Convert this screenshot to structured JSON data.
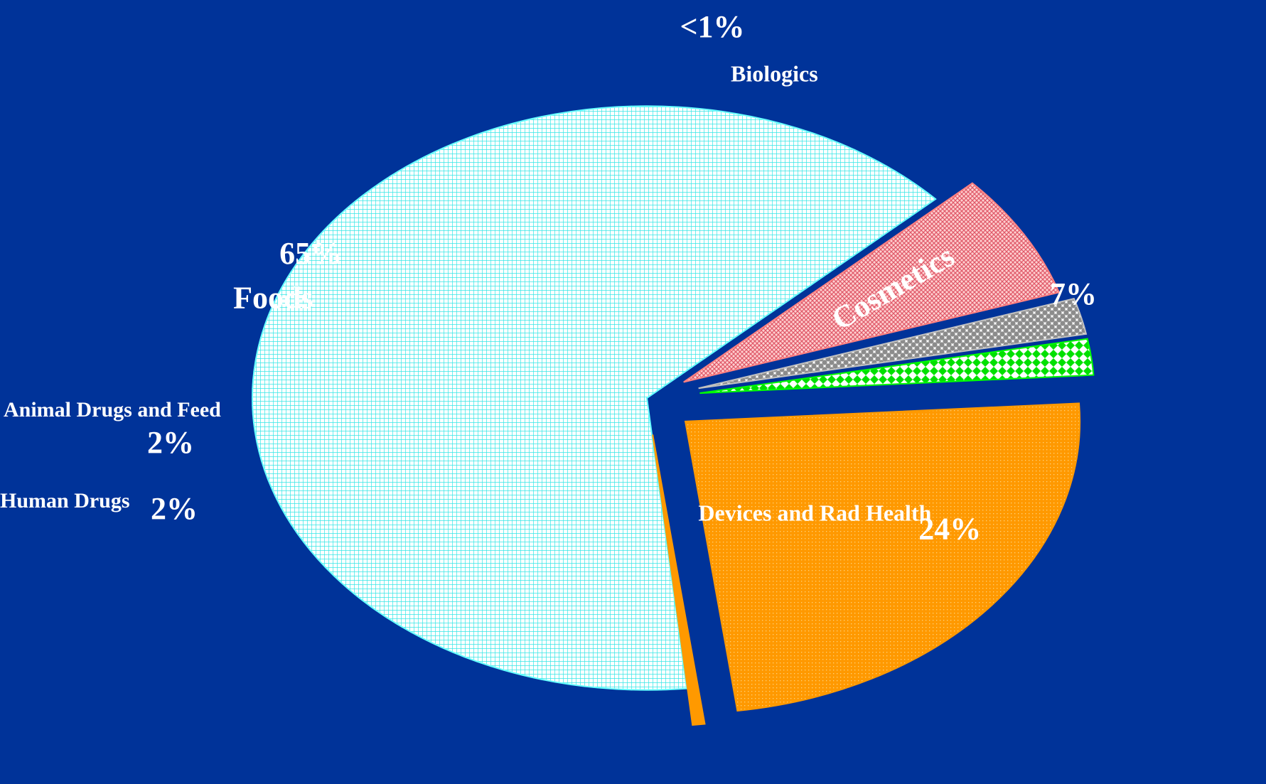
{
  "chart_data": {
    "type": "pie",
    "title": "",
    "unit": "%",
    "slices": [
      {
        "name": "Foods",
        "value": 65,
        "label": "65%",
        "color": "#66FFFF",
        "pattern": "grid"
      },
      {
        "name": "Cosmetics",
        "value": 7,
        "label": "7%",
        "color": "#FF8080",
        "pattern": "crosshatch"
      },
      {
        "name": "Human Drugs",
        "value": 2,
        "label": "2%",
        "color": "#C0C0C0",
        "pattern": "dots"
      },
      {
        "name": "Animal Drugs and Feed",
        "value": 2,
        "label": "2%",
        "color": "#00FF00",
        "pattern": "diamonds"
      },
      {
        "name": "Devices and Rad Health",
        "value": 24,
        "label": "24%",
        "color": "#FF9900",
        "pattern": "fine-dots"
      },
      {
        "name": "Biologics",
        "value": 0.5,
        "label": "<1%",
        "color": "#FF9900",
        "pattern": "solid"
      }
    ],
    "background": "#003399"
  }
}
